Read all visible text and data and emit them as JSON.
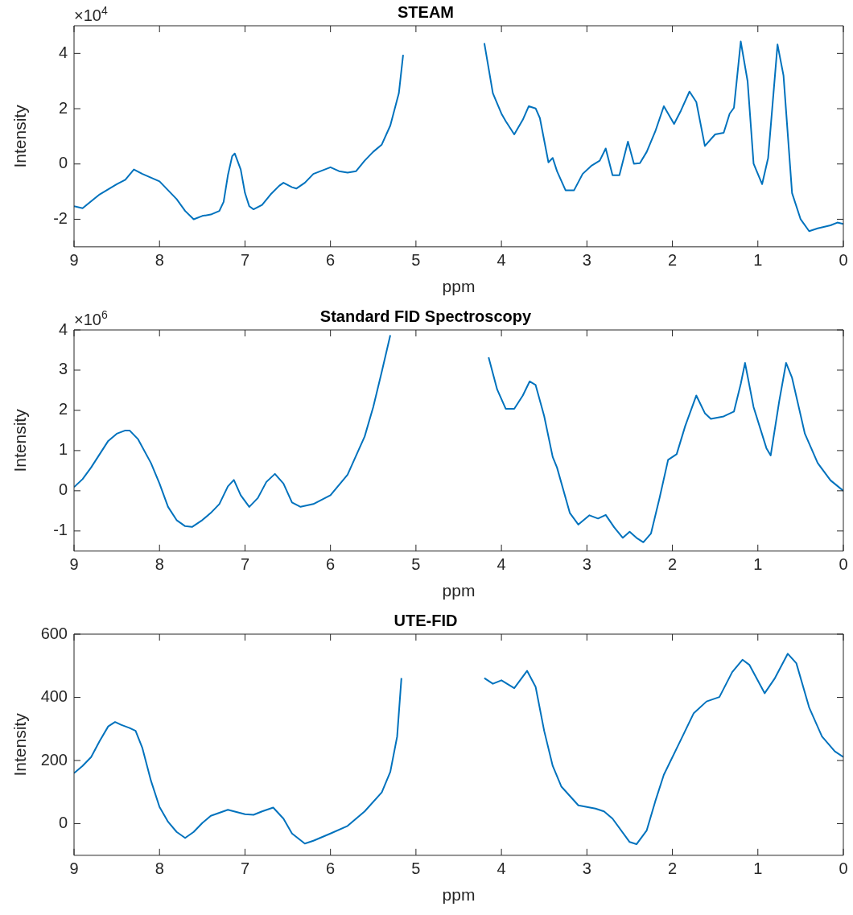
{
  "chart_data": [
    {
      "type": "line",
      "title": "STEAM",
      "xlabel": "ppm",
      "ylabel": "Intensity",
      "annotations": [
        "×10$^{4}$"
      ],
      "color": "#0072bd",
      "grid": false,
      "marker": "none",
      "line_style": "solid",
      "xlim": [
        9,
        0
      ],
      "xticks": [
        9,
        8,
        7,
        6,
        5,
        4,
        3,
        2,
        1,
        0
      ],
      "ylim": [
        -3,
        5
      ],
      "yticks": [
        -2,
        0,
        2,
        4
      ],
      "x": [
        9.0,
        8.9,
        8.7,
        8.5,
        8.4,
        8.3,
        8.2,
        8.0,
        7.9,
        7.8,
        7.7,
        7.6,
        7.5,
        7.4,
        7.3,
        7.25,
        7.2,
        7.15,
        7.12,
        7.05,
        7.0,
        6.95,
        6.9,
        6.8,
        6.7,
        6.6,
        6.55,
        6.45,
        6.4,
        6.3,
        6.2,
        6.0,
        5.9,
        5.8,
        5.7,
        5.6,
        5.5,
        5.4,
        5.3,
        5.2,
        5.15,
        5.12,
        4.7,
        4.26,
        4.2,
        4.1,
        4.0,
        3.95,
        3.85,
        3.75,
        3.68,
        3.6,
        3.55,
        3.45,
        3.4,
        3.35,
        3.25,
        3.15,
        3.05,
        2.95,
        2.85,
        2.78,
        2.7,
        2.62,
        2.52,
        2.45,
        2.38,
        2.3,
        2.2,
        2.1,
        1.98,
        1.9,
        1.8,
        1.72,
        1.62,
        1.5,
        1.4,
        1.33,
        1.28,
        1.2,
        1.12,
        1.05,
        0.95,
        0.88,
        0.77,
        0.7,
        0.6,
        0.5,
        0.4,
        0.3,
        0.15,
        0.07,
        0.0
      ],
      "values": [
        -1.53,
        -1.6,
        -1.1,
        -0.73,
        -0.57,
        -0.2,
        -0.36,
        -0.63,
        -0.95,
        -1.27,
        -1.7,
        -2.0,
        -1.88,
        -1.83,
        -1.7,
        -1.37,
        -0.41,
        0.28,
        0.38,
        -0.2,
        -1.05,
        -1.53,
        -1.64,
        -1.48,
        -1.1,
        -0.79,
        -0.68,
        -0.84,
        -0.89,
        -0.68,
        -0.36,
        -0.12,
        -0.26,
        -0.31,
        -0.26,
        0.12,
        0.44,
        0.7,
        1.39,
        2.56,
        3.95,
        null,
        null,
        null,
        4.37,
        2.56,
        1.82,
        1.55,
        1.07,
        1.6,
        2.09,
        2.01,
        1.66,
        0.06,
        0.22,
        -0.26,
        -0.95,
        -0.95,
        -0.36,
        -0.07,
        0.12,
        0.56,
        -0.41,
        -0.41,
        0.81,
        0.01,
        0.03,
        0.44,
        1.18,
        2.09,
        1.45,
        1.93,
        2.62,
        2.24,
        0.65,
        1.07,
        1.13,
        1.82,
        2.03,
        4.43,
        2.99,
        0.01,
        -0.73,
        0.22,
        4.32,
        3.2,
        -1.05,
        -2.0,
        -2.43,
        -2.33,
        -2.22,
        -2.12,
        -2.17
      ]
    },
    {
      "type": "line",
      "title": "Standard FID Spectroscopy",
      "xlabel": "ppm",
      "ylabel": "Intensity",
      "annotations": [
        "×10$^{6}$"
      ],
      "color": "#0072bd",
      "grid": false,
      "marker": "none",
      "line_style": "solid",
      "xlim": [
        9,
        0
      ],
      "xticks": [
        9,
        8,
        7,
        6,
        5,
        4,
        3,
        2,
        1,
        0
      ],
      "ylim": [
        -1.5,
        4
      ],
      "yticks": [
        -1,
        0,
        1,
        2,
        3,
        4
      ],
      "x": [
        9.0,
        8.9,
        8.8,
        8.7,
        8.6,
        8.5,
        8.4,
        8.35,
        8.25,
        8.1,
        8.0,
        7.9,
        7.8,
        7.7,
        7.62,
        7.5,
        7.4,
        7.3,
        7.2,
        7.13,
        7.05,
        6.95,
        6.85,
        6.75,
        6.65,
        6.55,
        6.45,
        6.35,
        6.2,
        6.0,
        5.8,
        5.6,
        5.5,
        5.4,
        5.3,
        5.28,
        4.7,
        4.25,
        4.15,
        4.05,
        3.95,
        3.85,
        3.75,
        3.67,
        3.6,
        3.5,
        3.4,
        3.35,
        3.2,
        3.1,
        2.97,
        2.87,
        2.78,
        2.68,
        2.58,
        2.5,
        2.42,
        2.34,
        2.25,
        2.15,
        2.05,
        1.95,
        1.85,
        1.72,
        1.62,
        1.55,
        1.4,
        1.28,
        1.2,
        1.15,
        1.05,
        0.9,
        0.85,
        0.75,
        0.67,
        0.6,
        0.45,
        0.3,
        0.15,
        0.0
      ],
      "values": [
        0.09,
        0.29,
        0.58,
        0.91,
        1.24,
        1.42,
        1.5,
        1.5,
        1.28,
        0.69,
        0.18,
        -0.4,
        -0.73,
        -0.88,
        -0.9,
        -0.73,
        -0.55,
        -0.33,
        0.11,
        0.27,
        -0.11,
        -0.4,
        -0.18,
        0.22,
        0.42,
        0.18,
        -0.29,
        -0.4,
        -0.33,
        -0.11,
        0.4,
        1.35,
        2.08,
        2.96,
        3.87,
        null,
        null,
        null,
        3.32,
        2.52,
        2.04,
        2.04,
        2.37,
        2.72,
        2.63,
        1.86,
        0.84,
        0.58,
        -0.55,
        -0.84,
        -0.61,
        -0.69,
        -0.6,
        -0.91,
        -1.17,
        -1.02,
        -1.17,
        -1.28,
        -1.06,
        -0.18,
        0.77,
        0.91,
        1.61,
        2.37,
        1.93,
        1.79,
        1.85,
        1.97,
        2.66,
        3.18,
        2.08,
        1.06,
        0.88,
        2.23,
        3.18,
        2.81,
        1.42,
        0.69,
        0.26,
        0
      ]
    },
    {
      "type": "line",
      "title": "UTE-FID",
      "xlabel": "ppm",
      "ylabel": "Intensity",
      "color": "#0072bd",
      "grid": false,
      "marker": "none",
      "line_style": "solid",
      "xlim": [
        9,
        0
      ],
      "xticks": [
        9,
        8,
        7,
        6,
        5,
        4,
        3,
        2,
        1,
        0
      ],
      "ylim": [
        -100,
        600
      ],
      "yticks": [
        0,
        200,
        400,
        600
      ],
      "x": [
        9.0,
        8.9,
        8.8,
        8.7,
        8.6,
        8.52,
        8.45,
        8.35,
        8.28,
        8.2,
        8.1,
        8.0,
        7.9,
        7.8,
        7.7,
        7.6,
        7.5,
        7.4,
        7.2,
        7.0,
        6.9,
        6.8,
        6.67,
        6.55,
        6.45,
        6.3,
        6.2,
        6.0,
        5.8,
        5.6,
        5.4,
        5.3,
        5.22,
        5.17,
        5.13,
        4.7,
        4.27,
        4.2,
        4.1,
        4.0,
        3.85,
        3.7,
        3.6,
        3.5,
        3.4,
        3.3,
        3.1,
        2.9,
        2.8,
        2.7,
        2.5,
        2.42,
        2.3,
        2.2,
        2.1,
        1.9,
        1.75,
        1.6,
        1.45,
        1.3,
        1.18,
        1.1,
        0.92,
        0.8,
        0.65,
        0.55,
        0.4,
        0.25,
        0.1,
        0.0
      ],
      "values": [
        160,
        183,
        211,
        262,
        308,
        322,
        313,
        303,
        294,
        239,
        136,
        53,
        6,
        -26,
        -45,
        -26,
        2,
        25,
        44,
        30,
        28,
        39,
        51,
        16,
        -31,
        -63,
        -54,
        -31,
        -7,
        39,
        99,
        164,
        276,
        461,
        null,
        null,
        null,
        461,
        443,
        454,
        429,
        484,
        433,
        294,
        183,
        118,
        58,
        48,
        39,
        16,
        -58,
        -65,
        -21,
        71,
        155,
        266,
        350,
        387,
        401,
        480,
        519,
        503,
        413,
        461,
        538,
        508,
        368,
        276,
        229,
        211
      ]
    }
  ]
}
